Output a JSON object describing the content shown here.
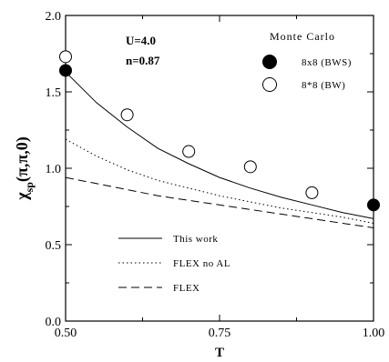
{
  "chart_data": {
    "type": "line",
    "xlabel": "T",
    "ylabel_main": "χ",
    "ylabel_sub": "sp",
    "ylabel_args": "(π,π,0)",
    "xlim": [
      0.5,
      1.0
    ],
    "ylim": [
      0.0,
      2.0
    ],
    "x_ticks": [
      0.5,
      0.75,
      1.0
    ],
    "x_tick_labels": [
      "0.50",
      "0.75",
      "1.00"
    ],
    "y_ticks": [
      0.0,
      0.5,
      1.0,
      1.5,
      2.0
    ],
    "y_tick_labels": [
      "0.0",
      "0.5",
      "1.0",
      "1.5",
      "2.0"
    ],
    "annotations": [
      "U=4.0",
      "n=0.87"
    ],
    "legend_title": "Monte Carlo",
    "line_series": [
      {
        "name": "This work",
        "style": "solid",
        "x": [
          0.5,
          0.55,
          0.6,
          0.65,
          0.7,
          0.75,
          0.8,
          0.85,
          0.9,
          0.95,
          1.0
        ],
        "y": [
          1.63,
          1.43,
          1.27,
          1.13,
          1.03,
          0.94,
          0.87,
          0.81,
          0.76,
          0.71,
          0.67
        ]
      },
      {
        "name": "FLEX no AL",
        "style": "dotted",
        "x": [
          0.5,
          0.55,
          0.6,
          0.65,
          0.7,
          0.75,
          0.8,
          0.85,
          0.9,
          0.95,
          1.0
        ],
        "y": [
          1.19,
          1.08,
          0.99,
          0.92,
          0.87,
          0.82,
          0.78,
          0.74,
          0.71,
          0.68,
          0.64
        ]
      },
      {
        "name": "FLEX",
        "style": "dashed",
        "x": [
          0.5,
          0.55,
          0.6,
          0.65,
          0.7,
          0.75,
          0.8,
          0.85,
          0.9,
          0.95,
          1.0
        ],
        "y": [
          0.94,
          0.9,
          0.86,
          0.82,
          0.79,
          0.76,
          0.73,
          0.7,
          0.67,
          0.64,
          0.61
        ]
      }
    ],
    "marker_series": [
      {
        "name": "8x8 (BWS)",
        "marker": "filled-circle",
        "x": [
          0.5,
          1.0
        ],
        "y": [
          1.64,
          0.76
        ]
      },
      {
        "name": "8*8 (BW)",
        "marker": "open-circle",
        "x": [
          0.5,
          0.6,
          0.7,
          0.8,
          0.9
        ],
        "y": [
          1.73,
          1.35,
          1.11,
          1.01,
          0.84
        ]
      }
    ]
  }
}
